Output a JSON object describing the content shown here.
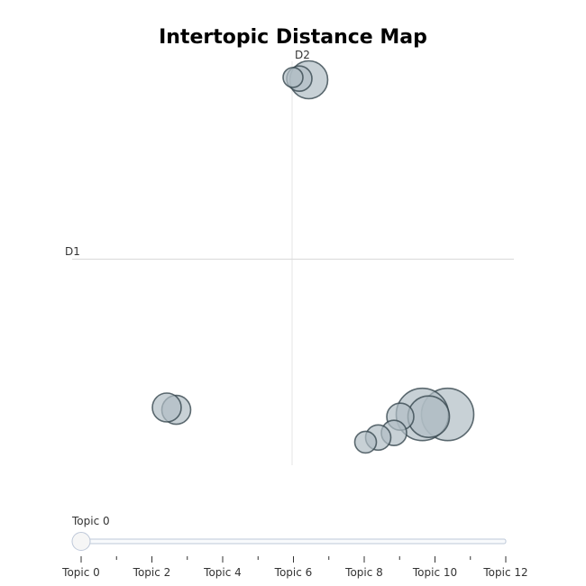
{
  "chart_data": {
    "type": "scatter",
    "title": "Intertopic Distance Map",
    "x_axis_label": "D1",
    "y_axis_label": "D2",
    "grid": false,
    "bubbles": [
      {
        "topic": 0,
        "x": 5.5,
        "y": 8.2,
        "size": 21
      },
      {
        "topic": 1,
        "x": 5.2,
        "y": 8.25,
        "size": 14
      },
      {
        "topic": 2,
        "x": 5.0,
        "y": 8.3,
        "size": 11
      },
      {
        "topic": 3,
        "x": 1.3,
        "y": -6.1,
        "size": 16
      },
      {
        "topic": 4,
        "x": 1.0,
        "y": -6.0,
        "size": 16
      },
      {
        "topic": 5,
        "x": 9.9,
        "y": -6.3,
        "size": 29
      },
      {
        "topic": 6,
        "x": 9.1,
        "y": -6.3,
        "size": 29
      },
      {
        "topic": 7,
        "x": 9.3,
        "y": -6.4,
        "size": 23
      },
      {
        "topic": 8,
        "x": 8.4,
        "y": -6.4,
        "size": 15
      },
      {
        "topic": 9,
        "x": 8.2,
        "y": -7.1,
        "size": 14
      },
      {
        "topic": 10,
        "x": 7.7,
        "y": -7.3,
        "size": 14
      },
      {
        "topic": 11,
        "x": 7.3,
        "y": -7.5,
        "size": 12
      }
    ],
    "slider": {
      "current_label": "Topic 0",
      "ticks": [
        "Topic 0",
        "Topic 2",
        "Topic 4",
        "Topic 6",
        "Topic 8",
        "Topic 10",
        "Topic 12"
      ],
      "value": 0
    }
  }
}
